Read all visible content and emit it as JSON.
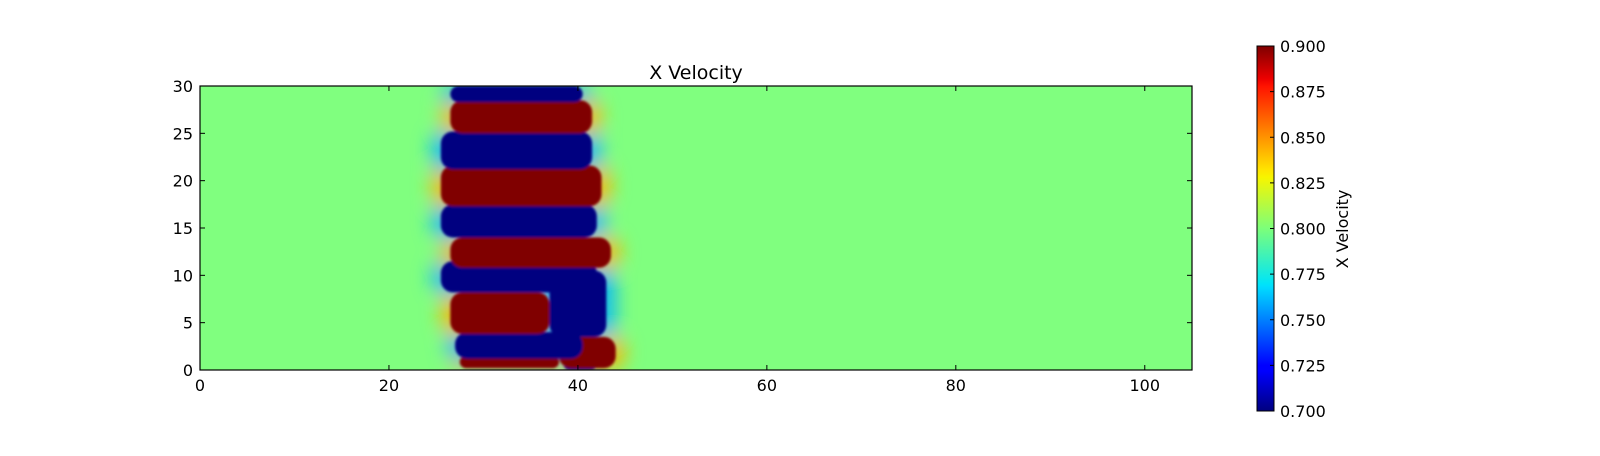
{
  "chart_data": {
    "type": "heatmap",
    "title": "X Velocity",
    "xlabel": "",
    "ylabel": "",
    "xlim": [
      0,
      105
    ],
    "ylim": [
      0,
      30
    ],
    "x_ticks": [
      0,
      20,
      40,
      60,
      80,
      100
    ],
    "y_ticks": [
      0,
      5,
      10,
      15,
      20,
      25,
      30
    ],
    "x_tick_labels": [
      "0",
      "20",
      "40",
      "60",
      "80",
      "100"
    ],
    "y_tick_labels": [
      "0",
      "5",
      "10",
      "15",
      "20",
      "25",
      "30"
    ],
    "colormap": "jet",
    "colorbar": {
      "label": "X Velocity",
      "range": [
        0.7,
        0.9
      ],
      "ticks": [
        0.7,
        0.725,
        0.75,
        0.775,
        0.8,
        0.825,
        0.85,
        0.875,
        0.9
      ],
      "tick_labels": [
        "0.700",
        "0.725",
        "0.750",
        "0.775",
        "0.800",
        "0.825",
        "0.850",
        "0.875",
        "0.900"
      ]
    },
    "background_value": 0.8,
    "bands": [
      {
        "value": 0.7,
        "y_bottom": 0,
        "y_top": 1.2,
        "x_start": 38.5,
        "x_end": 42
      },
      {
        "value": 0.9,
        "y_bottom": 0.2,
        "y_top": 1.5,
        "x_start": 27.5,
        "x_end": 38
      },
      {
        "value": 0.9,
        "y_bottom": 0.2,
        "y_top": 3.5,
        "x_start": 38,
        "x_end": 44
      },
      {
        "value": 0.7,
        "y_bottom": 1.2,
        "y_top": 4.0,
        "x_start": 27,
        "x_end": 40.5
      },
      {
        "value": 0.9,
        "y_bottom": 3.8,
        "y_top": 8.2,
        "x_start": 26.5,
        "x_end": 37
      },
      {
        "value": 0.7,
        "y_bottom": 3.5,
        "y_top": 10.5,
        "x_start": 37,
        "x_end": 43
      },
      {
        "value": 0.7,
        "y_bottom": 8.2,
        "y_top": 11.5,
        "x_start": 25.5,
        "x_end": 42
      },
      {
        "value": 0.9,
        "y_bottom": 10.8,
        "y_top": 14.0,
        "x_start": 26.5,
        "x_end": 43.5
      },
      {
        "value": 0.7,
        "y_bottom": 14.0,
        "y_top": 17.5,
        "x_start": 25.5,
        "x_end": 42
      },
      {
        "value": 0.9,
        "y_bottom": 17.3,
        "y_top": 21.6,
        "x_start": 25.5,
        "x_end": 42.5
      },
      {
        "value": 0.7,
        "y_bottom": 21.2,
        "y_top": 25.2,
        "x_start": 25.5,
        "x_end": 41.5
      },
      {
        "value": 0.9,
        "y_bottom": 25.0,
        "y_top": 28.5,
        "x_start": 26.5,
        "x_end": 41.5
      },
      {
        "value": 0.7,
        "y_bottom": 28.3,
        "y_top": 30,
        "x_start": 26.5,
        "x_end": 40.5
      }
    ]
  }
}
